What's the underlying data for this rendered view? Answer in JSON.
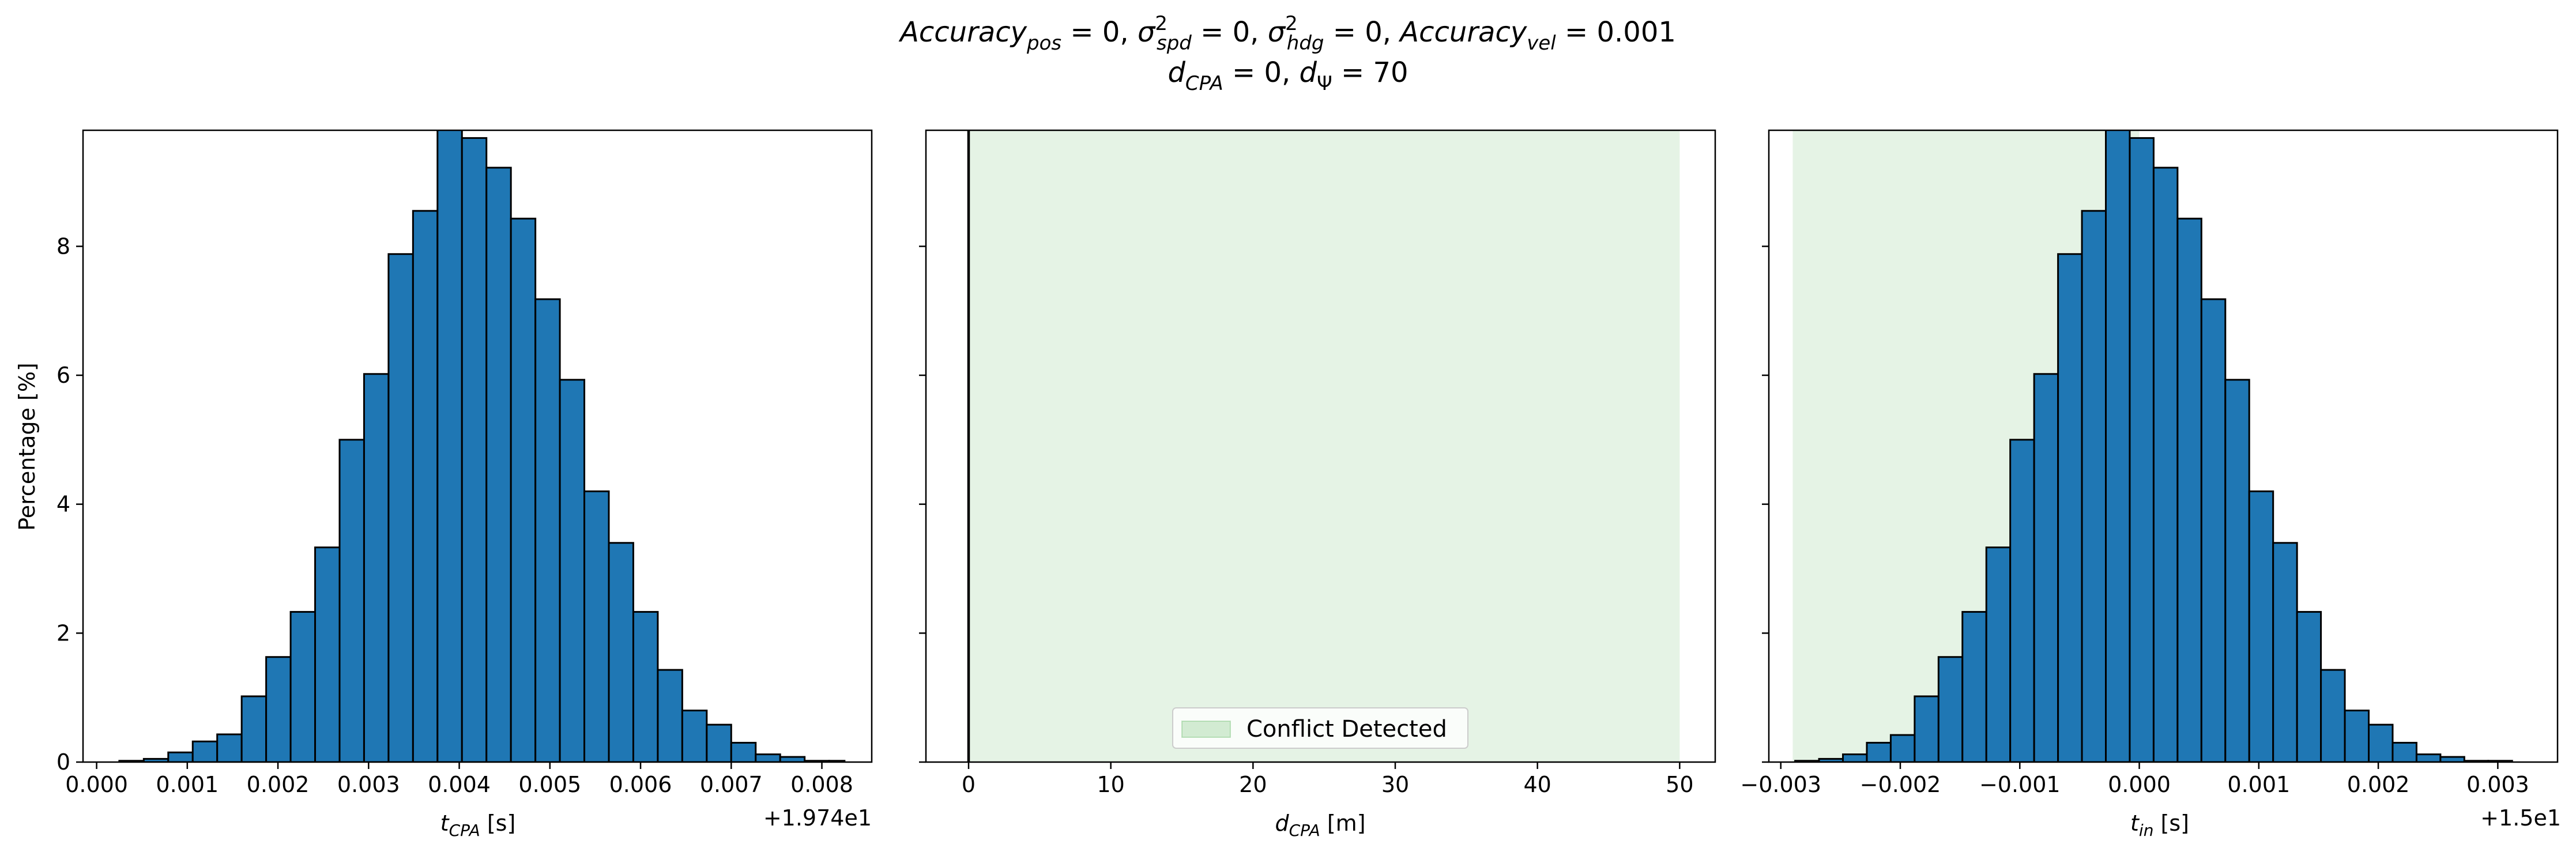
{
  "figure": {
    "title_line1": "Accuracy_pos = 0, σ²_spd = 0, σ²_hdg = 0, Accuracy_vel = 0.001",
    "title_line2": "d_CPA = 0, d_Ψ = 70"
  },
  "chart_data": [
    {
      "type": "bar",
      "panel": "left",
      "xlabel": "t_CPA [s]",
      "ylabel": "Percentage [%]",
      "offset_text": "+1.974e1",
      "xlim": [
        -0.00015,
        0.00855
      ],
      "ylim": [
        0,
        9.8
      ],
      "xticks": [
        0.0,
        0.001,
        0.002,
        0.003,
        0.004,
        0.005,
        0.006,
        0.007,
        0.008
      ],
      "xtick_labels": [
        "0.000",
        "0.001",
        "0.002",
        "0.003",
        "0.004",
        "0.005",
        "0.006",
        "0.007",
        "0.008"
      ],
      "yticks": [
        0,
        2,
        4,
        6,
        8
      ],
      "ytick_labels": [
        "0",
        "2",
        "4",
        "6",
        "8"
      ],
      "bar_color": "#1f77b4",
      "edge_color": "#000000",
      "bins": [
        {
          "x0": 0.00025,
          "x1": 0.00052,
          "value": 0.02
        },
        {
          "x0": 0.00052,
          "x1": 0.00079,
          "value": 0.05
        },
        {
          "x0": 0.00079,
          "x1": 0.00106,
          "value": 0.15
        },
        {
          "x0": 0.00106,
          "x1": 0.00133,
          "value": 0.32
        },
        {
          "x0": 0.00133,
          "x1": 0.0016,
          "value": 0.43
        },
        {
          "x0": 0.0016,
          "x1": 0.00187,
          "value": 1.02
        },
        {
          "x0": 0.00187,
          "x1": 0.00214,
          "value": 1.63
        },
        {
          "x0": 0.00214,
          "x1": 0.00241,
          "value": 2.33
        },
        {
          "x0": 0.00241,
          "x1": 0.00268,
          "value": 3.33
        },
        {
          "x0": 0.00268,
          "x1": 0.00295,
          "value": 5.0
        },
        {
          "x0": 0.00295,
          "x1": 0.00322,
          "value": 6.02
        },
        {
          "x0": 0.00322,
          "x1": 0.00349,
          "value": 7.88
        },
        {
          "x0": 0.00349,
          "x1": 0.00376,
          "value": 8.55
        },
        {
          "x0": 0.00376,
          "x1": 0.00403,
          "value": 9.82
        },
        {
          "x0": 0.00403,
          "x1": 0.0043,
          "value": 9.68
        },
        {
          "x0": 0.0043,
          "x1": 0.00457,
          "value": 9.22
        },
        {
          "x0": 0.00457,
          "x1": 0.00484,
          "value": 8.43
        },
        {
          "x0": 0.00484,
          "x1": 0.00511,
          "value": 7.18
        },
        {
          "x0": 0.00511,
          "x1": 0.00538,
          "value": 5.93
        },
        {
          "x0": 0.00538,
          "x1": 0.00565,
          "value": 4.2
        },
        {
          "x0": 0.00565,
          "x1": 0.00592,
          "value": 3.4
        },
        {
          "x0": 0.00592,
          "x1": 0.00619,
          "value": 2.33
        },
        {
          "x0": 0.00619,
          "x1": 0.00646,
          "value": 1.43
        },
        {
          "x0": 0.00646,
          "x1": 0.00673,
          "value": 0.8
        },
        {
          "x0": 0.00673,
          "x1": 0.007,
          "value": 0.58
        },
        {
          "x0": 0.007,
          "x1": 0.00727,
          "value": 0.3
        },
        {
          "x0": 0.00727,
          "x1": 0.00754,
          "value": 0.12
        },
        {
          "x0": 0.00754,
          "x1": 0.00781,
          "value": 0.08
        },
        {
          "x0": 0.00781,
          "x1": 0.00808,
          "value": 0.02
        },
        {
          "x0": 0.00808,
          "x1": 0.00825,
          "value": 0.02
        }
      ]
    },
    {
      "type": "area",
      "panel": "middle",
      "xlabel": "d_CPA [m]",
      "xlim": [
        -3,
        52.5
      ],
      "ylim": [
        0,
        9.8
      ],
      "xticks": [
        0,
        10,
        20,
        30,
        40,
        50
      ],
      "xtick_labels": [
        "0",
        "10",
        "20",
        "30",
        "40",
        "50"
      ],
      "yticks": [
        0,
        2,
        4,
        6,
        8
      ],
      "vline_x": 0,
      "shaded_region": {
        "x0": 0,
        "x1": 50,
        "color": "#2ca02c",
        "alpha": 0.12
      },
      "legend": {
        "label": "Conflict Detected",
        "location": "lower center"
      }
    },
    {
      "type": "bar",
      "panel": "right",
      "xlabel": "t_in [s]",
      "offset_text": "+1.5e1",
      "xlim": [
        -0.0031,
        0.0035
      ],
      "ylim": [
        0,
        9.8
      ],
      "xticks": [
        -0.003,
        -0.002,
        -0.001,
        0.0,
        0.001,
        0.002,
        0.003
      ],
      "xtick_labels": [
        "−0.003",
        "−0.002",
        "−0.001",
        "0.000",
        "0.001",
        "0.002",
        "0.003"
      ],
      "yticks": [
        0,
        2,
        4,
        6,
        8
      ],
      "shaded_region": {
        "x0": -0.0029,
        "x1": 0.0,
        "color": "#2ca02c",
        "alpha": 0.12
      },
      "bar_color": "#1f77b4",
      "edge_color": "#000000",
      "bins": [
        {
          "x0": -0.00288,
          "x1": -0.00268,
          "value": 0.02
        },
        {
          "x0": -0.00268,
          "x1": -0.00248,
          "value": 0.05
        },
        {
          "x0": -0.00248,
          "x1": -0.00228,
          "value": 0.12
        },
        {
          "x0": -0.00228,
          "x1": -0.00208,
          "value": 0.3
        },
        {
          "x0": -0.00208,
          "x1": -0.00188,
          "value": 0.42
        },
        {
          "x0": -0.00188,
          "x1": -0.00168,
          "value": 1.02
        },
        {
          "x0": -0.00168,
          "x1": -0.00148,
          "value": 1.63
        },
        {
          "x0": -0.00148,
          "x1": -0.00128,
          "value": 2.33
        },
        {
          "x0": -0.00128,
          "x1": -0.00108,
          "value": 3.33
        },
        {
          "x0": -0.00108,
          "x1": -0.00088,
          "value": 5.0
        },
        {
          "x0": -0.00088,
          "x1": -0.00068,
          "value": 6.02
        },
        {
          "x0": -0.00068,
          "x1": -0.00048,
          "value": 7.88
        },
        {
          "x0": -0.00048,
          "x1": -0.00028,
          "value": 8.55
        },
        {
          "x0": -0.00028,
          "x1": -8e-05,
          "value": 9.82
        },
        {
          "x0": -8e-05,
          "x1": 0.00012,
          "value": 9.68
        },
        {
          "x0": 0.00012,
          "x1": 0.00032,
          "value": 9.22
        },
        {
          "x0": 0.00032,
          "x1": 0.00052,
          "value": 8.43
        },
        {
          "x0": 0.00052,
          "x1": 0.00072,
          "value": 7.18
        },
        {
          "x0": 0.00072,
          "x1": 0.00092,
          "value": 5.93
        },
        {
          "x0": 0.00092,
          "x1": 0.00112,
          "value": 4.2
        },
        {
          "x0": 0.00112,
          "x1": 0.00132,
          "value": 3.4
        },
        {
          "x0": 0.00132,
          "x1": 0.00152,
          "value": 2.33
        },
        {
          "x0": 0.00152,
          "x1": 0.00172,
          "value": 1.43
        },
        {
          "x0": 0.00172,
          "x1": 0.00192,
          "value": 0.8
        },
        {
          "x0": 0.00192,
          "x1": 0.00212,
          "value": 0.58
        },
        {
          "x0": 0.00212,
          "x1": 0.00232,
          "value": 0.3
        },
        {
          "x0": 0.00232,
          "x1": 0.00252,
          "value": 0.12
        },
        {
          "x0": 0.00252,
          "x1": 0.00272,
          "value": 0.08
        },
        {
          "x0": 0.00272,
          "x1": 0.00292,
          "value": 0.02
        },
        {
          "x0": 0.00292,
          "x1": 0.00312,
          "value": 0.02
        }
      ]
    }
  ]
}
